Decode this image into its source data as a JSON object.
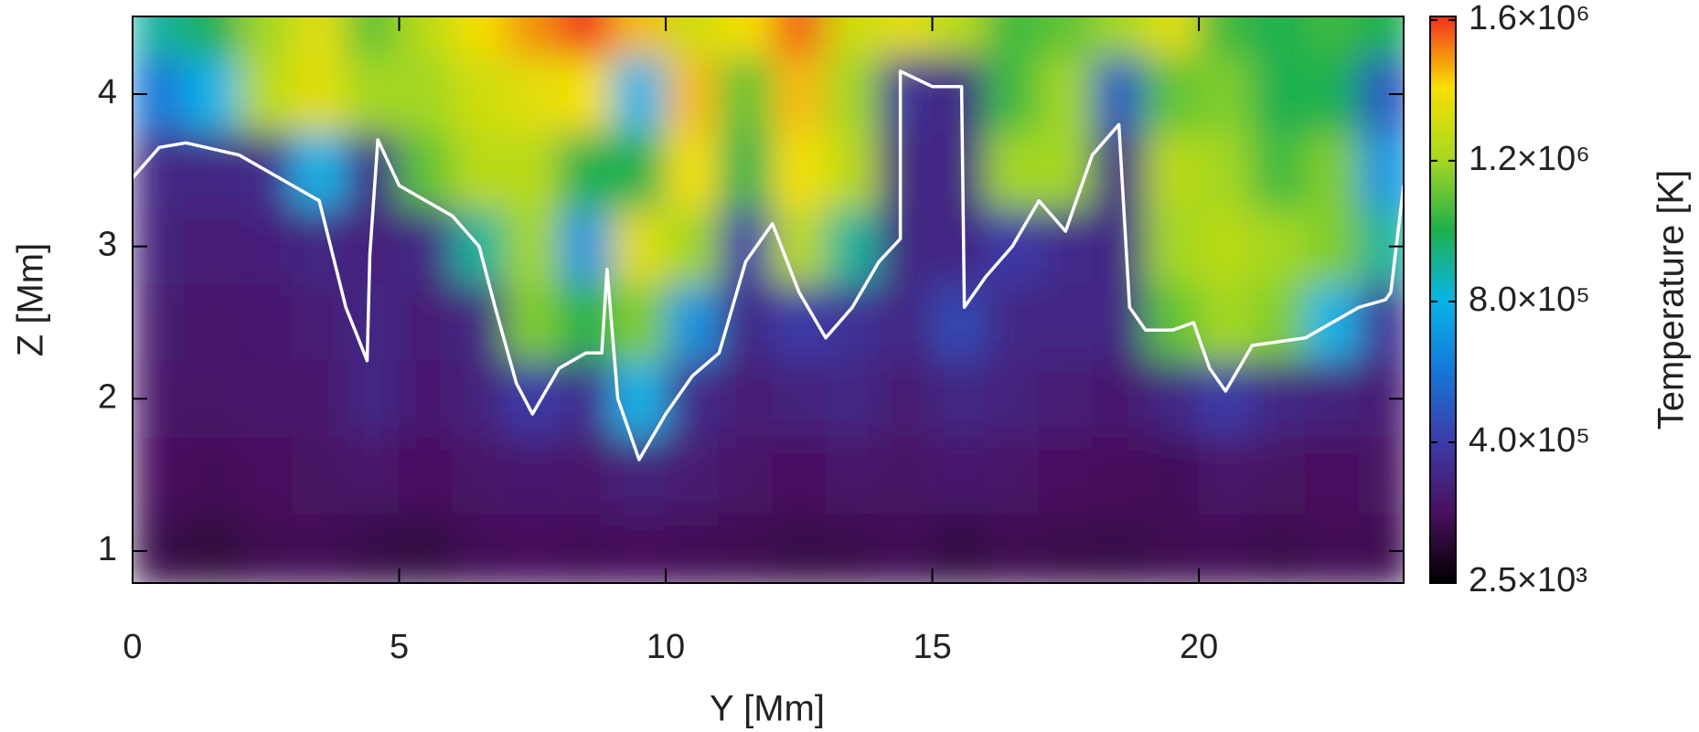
{
  "chart_data": {
    "type": "heatmap",
    "xlabel": "Y [Mm]",
    "ylabel": "Z [Mm]",
    "colorbar_label": "Temperature [K]",
    "xlim": [
      0,
      23.84
    ],
    "ylim": [
      0.79,
      4.51
    ],
    "xticks": [
      0,
      5,
      10,
      15,
      20
    ],
    "yticks": [
      1,
      2,
      3,
      4
    ],
    "clim": [
      0,
      1610000
    ],
    "cticks": [
      {
        "value": 2500,
        "label": "2.5×10³"
      },
      {
        "value": 400000,
        "label": "4.0×10⁵"
      },
      {
        "value": 800000,
        "label": "8.0×10⁵"
      },
      {
        "value": 1200000,
        "label": "1.2×10⁶"
      },
      {
        "value": 1600000,
        "label": "1.6×10⁶"
      }
    ],
    "colormap": [
      "#000000",
      "#4a1060",
      "#3c3ca8",
      "#1478d8",
      "#08b4e8",
      "#20b04a",
      "#a8d820",
      "#f8e000",
      "#f03020"
    ],
    "field": {
      "x": [
        0.5,
        1.5,
        2.5,
        3.5,
        4.5,
        5.5,
        6.5,
        7.5,
        8.5,
        9.5,
        10.5,
        11.5,
        12.5,
        13.5,
        14.5,
        15.5,
        16.5,
        17.5,
        18.5,
        19.5,
        20.5,
        21.5,
        22.5,
        23.5
      ],
      "y": [
        1.0,
        1.5,
        2.0,
        2.5,
        3.0,
        3.5,
        4.0,
        4.5
      ],
      "z": [
        [
          160000,
          130000,
          170000,
          180000,
          150000,
          140000,
          180000,
          190000,
          180000,
          190000,
          180000,
          170000,
          150000,
          160000,
          180000,
          140000,
          170000,
          160000,
          150000,
          170000,
          180000,
          160000,
          180000,
          170000
        ],
        [
          200000,
          180000,
          200000,
          210000,
          230000,
          200000,
          220000,
          240000,
          230000,
          280000,
          250000,
          220000,
          200000,
          230000,
          210000,
          240000,
          220000,
          200000,
          190000,
          180000,
          230000,
          210000,
          200000,
          210000
        ],
        [
          220000,
          220000,
          230000,
          230000,
          300000,
          240000,
          280000,
          400000,
          320000,
          800000,
          320000,
          260000,
          280000,
          300000,
          250000,
          300000,
          280000,
          260000,
          240000,
          300000,
          400000,
          300000,
          280000,
          260000
        ],
        [
          250000,
          230000,
          240000,
          260000,
          300000,
          260000,
          300000,
          1150000,
          1000000,
          1150000,
          700000,
          300000,
          400000,
          350000,
          300000,
          450000,
          300000,
          300000,
          300000,
          1100000,
          1200000,
          1150000,
          800000,
          350000
        ],
        [
          280000,
          260000,
          270000,
          300000,
          280000,
          300000,
          900000,
          1200000,
          700000,
          1350000,
          1200000,
          400000,
          1250000,
          900000,
          300000,
          300000,
          400000,
          320000,
          300000,
          1200000,
          1250000,
          1200000,
          1150000,
          900000
        ],
        [
          300000,
          300000,
          320000,
          800000,
          300000,
          1100000,
          1250000,
          1250000,
          1000000,
          1000000,
          1400000,
          1000000,
          1400000,
          1250000,
          300000,
          300000,
          1200000,
          1200000,
          300000,
          1250000,
          1200000,
          1050000,
          1150000,
          700000
        ],
        [
          600000,
          800000,
          1250000,
          1350000,
          1200000,
          1200000,
          1300000,
          1350000,
          1400000,
          800000,
          1450000,
          1100000,
          1450000,
          1200000,
          350000,
          300000,
          1050000,
          1200000,
          500000,
          1100000,
          1150000,
          1000000,
          1000000,
          500000
        ],
        [
          900000,
          1000000,
          1200000,
          1350000,
          1100000,
          1250000,
          1400000,
          1500000,
          1600000,
          1450000,
          1300000,
          1400000,
          1550000,
          1300000,
          1350000,
          1250000,
          1050000,
          1100000,
          1200000,
          1350000,
          1050000,
          1000000,
          1050000,
          1000000
        ]
      ]
    },
    "contour": {
      "color": "#ffffff",
      "x": [
        0,
        0.5,
        1,
        2,
        3,
        3.5,
        4,
        4.4,
        4.45,
        4.6,
        5,
        6,
        6.5,
        6.8,
        7.2,
        7.5,
        8,
        8.5,
        8.8,
        8.9,
        9.1,
        9.5,
        10,
        10.5,
        11,
        11.5,
        12,
        12.5,
        13,
        13.5,
        14,
        14.4,
        14.4,
        15,
        15.55,
        15.6,
        16,
        16.5,
        17,
        17.5,
        18,
        18.5,
        18.7,
        19,
        19.5,
        19.9,
        20.2,
        20.5,
        21,
        22,
        23,
        23.5,
        23.6,
        23.84
      ],
      "y": [
        3.45,
        3.65,
        3.68,
        3.6,
        3.4,
        3.3,
        2.6,
        2.25,
        2.95,
        3.7,
        3.4,
        3.2,
        3.0,
        2.6,
        2.1,
        1.9,
        2.2,
        2.3,
        2.3,
        2.85,
        2.0,
        1.6,
        1.9,
        2.15,
        2.3,
        2.9,
        3.15,
        2.7,
        2.4,
        2.6,
        2.9,
        3.05,
        4.15,
        4.05,
        4.05,
        2.6,
        2.8,
        3.0,
        3.3,
        3.1,
        3.6,
        3.8,
        2.6,
        2.45,
        2.45,
        2.5,
        2.2,
        2.05,
        2.35,
        2.4,
        2.6,
        2.65,
        2.7,
        3.4
      ]
    }
  }
}
